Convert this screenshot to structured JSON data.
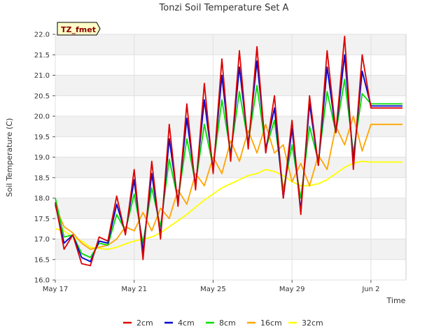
{
  "chart_data": {
    "type": "line",
    "title": "Tonzi Soil Temperature Set A",
    "xlabel": "Time",
    "ylabel": "Soil Temperature (C)",
    "badge": "TZ_fmet",
    "ylim": [
      16.0,
      22.0
    ],
    "xlim": [
      0,
      20
    ],
    "yticks": [
      "16.0",
      "16.5",
      "17.0",
      "17.5",
      "18.0",
      "18.5",
      "19.0",
      "19.5",
      "20.0",
      "20.5",
      "21.0",
      "21.5",
      "22.0"
    ],
    "xticks": [
      {
        "value": 0,
        "label": "May 17"
      },
      {
        "value": 4.5,
        "label": "May 21"
      },
      {
        "value": 9,
        "label": "May 25"
      },
      {
        "value": 13.5,
        "label": "May 29"
      },
      {
        "value": 18,
        "label": "Jun 2"
      }
    ],
    "grid": true,
    "legend_position": "bottom",
    "series": [
      {
        "name": "2cm",
        "color": "#dd0000",
        "x": [
          0.0,
          0.5,
          1.0,
          1.5,
          2.0,
          2.5,
          3.0,
          3.5,
          4.0,
          4.5,
          5.0,
          5.5,
          6.0,
          6.5,
          7.0,
          7.5,
          8.0,
          8.5,
          9.0,
          9.5,
          10.0,
          10.5,
          11.0,
          11.5,
          12.0,
          12.5,
          13.0,
          13.5,
          14.0,
          14.5,
          15.0,
          15.5,
          16.0,
          16.5,
          17.0,
          17.5,
          18.0,
          18.5,
          19.0,
          19.5,
          19.8
        ],
        "y": [
          17.9,
          16.75,
          17.1,
          16.4,
          16.35,
          17.05,
          16.95,
          18.05,
          17.1,
          18.7,
          16.5,
          18.9,
          17.0,
          19.8,
          17.8,
          20.3,
          18.2,
          20.8,
          18.6,
          21.4,
          18.9,
          21.6,
          19.2,
          21.7,
          19.1,
          20.5,
          18.0,
          19.9,
          17.6,
          20.5,
          18.8,
          21.6,
          19.6,
          21.95,
          18.7,
          21.5,
          20.2,
          20.2,
          20.2,
          20.2,
          20.2
        ]
      },
      {
        "name": "4cm",
        "color": "#0000cc",
        "x": [
          0.0,
          0.5,
          1.0,
          1.5,
          2.0,
          2.5,
          3.0,
          3.5,
          4.0,
          4.5,
          5.0,
          5.5,
          6.0,
          6.5,
          7.0,
          7.5,
          8.0,
          8.5,
          9.0,
          9.5,
          10.0,
          10.5,
          11.0,
          11.5,
          12.0,
          12.5,
          13.0,
          13.5,
          14.0,
          14.5,
          15.0,
          15.5,
          16.0,
          16.5,
          17.0,
          17.5,
          18.0,
          18.5,
          19.0,
          19.5,
          19.8
        ],
        "y": [
          17.85,
          16.9,
          17.1,
          16.55,
          16.45,
          16.95,
          16.9,
          17.85,
          17.15,
          18.45,
          16.7,
          18.6,
          17.1,
          19.45,
          17.9,
          19.95,
          18.3,
          20.4,
          18.7,
          21.0,
          19.0,
          21.2,
          19.3,
          21.35,
          19.2,
          20.2,
          18.0,
          19.7,
          17.7,
          20.3,
          18.8,
          21.2,
          19.6,
          21.5,
          18.9,
          21.1,
          20.25,
          20.25,
          20.25,
          20.25,
          20.25
        ]
      },
      {
        "name": "8cm",
        "color": "#00dd00",
        "x": [
          0.0,
          0.5,
          1.0,
          1.5,
          2.0,
          2.5,
          3.0,
          3.5,
          4.0,
          4.5,
          5.0,
          5.5,
          6.0,
          6.5,
          7.0,
          7.5,
          8.0,
          8.5,
          9.0,
          9.5,
          10.0,
          10.5,
          11.0,
          11.5,
          12.0,
          12.5,
          13.0,
          13.5,
          14.0,
          14.5,
          15.0,
          15.5,
          16.0,
          16.5,
          17.0,
          17.5,
          18.0,
          18.5,
          19.0,
          19.5,
          19.8
        ],
        "y": [
          18.0,
          17.05,
          17.1,
          16.65,
          16.55,
          16.9,
          16.85,
          17.6,
          17.2,
          18.1,
          16.9,
          18.25,
          17.3,
          18.95,
          17.95,
          19.45,
          18.35,
          19.8,
          18.75,
          20.4,
          19.1,
          20.6,
          19.35,
          20.75,
          19.2,
          19.9,
          18.2,
          19.3,
          18.0,
          19.75,
          18.9,
          20.6,
          19.6,
          20.9,
          19.1,
          20.55,
          20.3,
          20.3,
          20.3,
          20.3,
          20.3
        ]
      },
      {
        "name": "16cm",
        "color": "#ffa500",
        "x": [
          0.0,
          0.5,
          1.0,
          1.5,
          2.0,
          2.5,
          3.0,
          3.5,
          4.0,
          4.5,
          5.0,
          5.5,
          6.0,
          6.5,
          7.0,
          7.5,
          8.0,
          8.5,
          9.0,
          9.5,
          10.0,
          10.5,
          11.0,
          11.5,
          12.0,
          12.5,
          13.0,
          13.5,
          14.0,
          14.5,
          15.0,
          15.5,
          16.0,
          16.5,
          17.0,
          17.5,
          18.0,
          18.5,
          19.0,
          19.5,
          19.8
        ],
        "y": [
          17.8,
          17.3,
          17.15,
          16.9,
          16.75,
          16.8,
          16.85,
          17.0,
          17.3,
          17.2,
          17.65,
          17.2,
          17.75,
          17.5,
          18.2,
          17.85,
          18.6,
          18.3,
          19.0,
          18.6,
          19.4,
          18.9,
          19.65,
          19.1,
          19.8,
          19.1,
          19.3,
          18.4,
          18.85,
          18.3,
          19.05,
          18.7,
          19.75,
          19.3,
          20.0,
          19.15,
          19.8,
          19.8,
          19.8,
          19.8,
          19.8
        ]
      },
      {
        "name": "32cm",
        "color": "#ffff00",
        "x": [
          0.0,
          0.5,
          1.0,
          1.5,
          2.0,
          2.5,
          3.0,
          3.5,
          4.0,
          4.5,
          5.0,
          5.5,
          6.0,
          6.5,
          7.0,
          7.5,
          8.0,
          8.5,
          9.0,
          9.5,
          10.0,
          10.5,
          11.0,
          11.5,
          12.0,
          12.5,
          13.0,
          13.5,
          14.0,
          14.5,
          15.0,
          15.5,
          16.0,
          16.5,
          17.0,
          17.5,
          18.0,
          18.5,
          19.0,
          19.5,
          19.8
        ],
        "y": [
          17.25,
          17.2,
          17.05,
          16.95,
          16.8,
          16.77,
          16.75,
          16.8,
          16.88,
          16.95,
          17.0,
          17.05,
          17.15,
          17.3,
          17.45,
          17.6,
          17.78,
          17.95,
          18.1,
          18.25,
          18.35,
          18.45,
          18.55,
          18.6,
          18.7,
          18.65,
          18.55,
          18.4,
          18.3,
          18.3,
          18.35,
          18.45,
          18.6,
          18.75,
          18.85,
          18.9,
          18.88,
          18.88,
          18.88,
          18.88,
          18.88
        ]
      }
    ]
  }
}
